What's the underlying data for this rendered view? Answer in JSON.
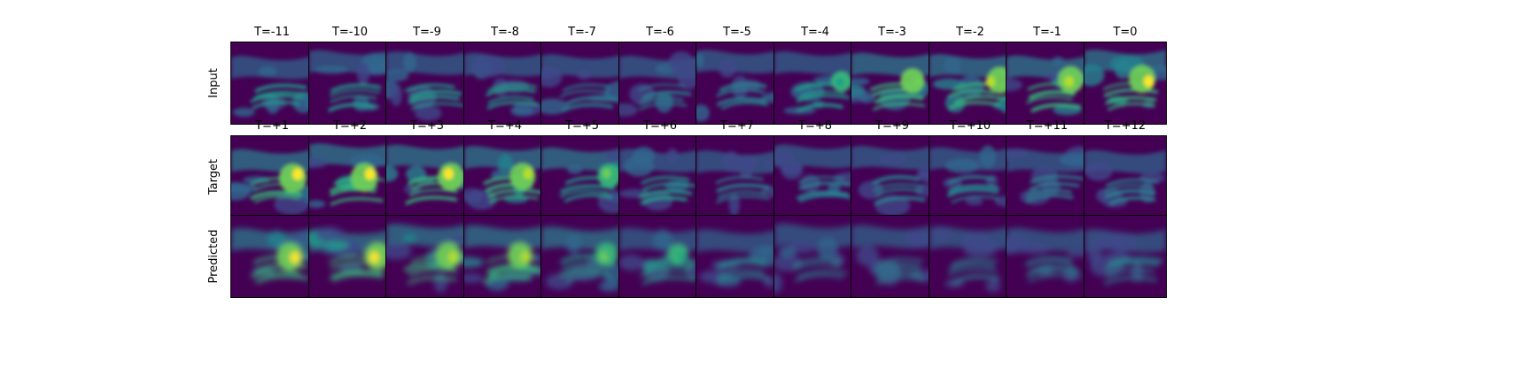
{
  "rows": [
    {
      "label": "Input",
      "titles": [
        "T=-11",
        "T=-10",
        "T=-9",
        "T=-8",
        "T=-7",
        "T=-6",
        "T=-5",
        "T=-4",
        "T=-3",
        "T=-2",
        "T=-1",
        "T=0"
      ],
      "intensity": [
        0.45,
        0.45,
        0.45,
        0.45,
        0.42,
        0.38,
        0.4,
        0.55,
        0.75,
        0.85,
        0.85,
        0.9
      ]
    },
    {
      "label": "Target",
      "titles": [
        "T=+1",
        "T=+2",
        "T=+3",
        "T=+4",
        "T=+5",
        "T=+6",
        "T=+7",
        "T=+8",
        "T=+9",
        "T=+10",
        "T=+11",
        "T=+12"
      ],
      "intensity": [
        0.95,
        0.95,
        0.9,
        0.85,
        0.7,
        0.5,
        0.35,
        0.32,
        0.3,
        0.28,
        0.28,
        0.25
      ]
    },
    {
      "label": "Predicted",
      "titles": [
        "",
        "",
        "",
        "",
        "",
        "",
        "",
        "",
        "",
        "",
        "",
        ""
      ],
      "intensity": [
        0.9,
        0.9,
        0.85,
        0.8,
        0.7,
        0.55,
        0.35,
        0.3,
        0.25,
        0.22,
        0.22,
        0.2
      ]
    }
  ],
  "colormap": [
    "#440154",
    "#482878",
    "#3e4989",
    "#31688e",
    "#26828e",
    "#1f9e89",
    "#35b779",
    "#6ece58",
    "#b5de2b",
    "#fde725"
  ]
}
